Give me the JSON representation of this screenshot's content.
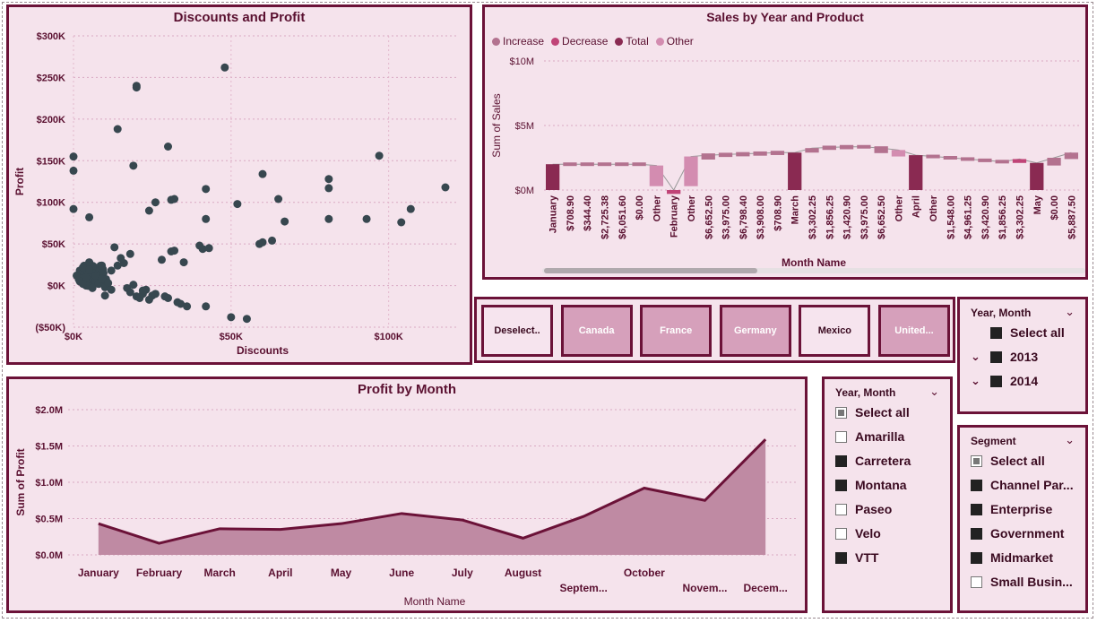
{
  "scatter": {
    "title": "Discounts and Profit",
    "xlabel": "Discounts",
    "ylabel": "Profit",
    "yticks": [
      "$300K",
      "$250K",
      "$200K",
      "$150K",
      "$100K",
      "$50K",
      "$0K",
      "($50K)"
    ],
    "xticks": [
      "$0K",
      "$50K",
      "$100K"
    ],
    "color": "#37474f"
  },
  "waterfall": {
    "title": "Sales by Year and Product",
    "legend": [
      {
        "label": "Increase",
        "color": "#b3728f"
      },
      {
        "label": "Decrease",
        "color": "#c04477"
      },
      {
        "label": "Total",
        "color": "#8a2a52"
      },
      {
        "label": "Other",
        "color": "#d38cb0"
      }
    ],
    "ylabel": "Sum of Sales",
    "yticks": [
      "$10M",
      "$5M",
      "$0M"
    ],
    "xlabel": "Month Name",
    "xcats": [
      "January",
      "$708.90",
      "$344.40",
      "$2,725.38",
      "$6,051.60",
      "$0.00",
      "Other",
      "February",
      "Other",
      "$6,652.50",
      "$3,975.00",
      "$6,798.40",
      "$3,908.00",
      "$708.90",
      "March",
      "$3,302.25",
      "$1,856.25",
      "$1,420.90",
      "$3,975.00",
      "$6,652.50",
      "Other",
      "April",
      "Other",
      "$1,548.00",
      "$4,961.25",
      "$3,420.90",
      "$1,856.25",
      "$3,302.25",
      "May",
      "$0.00",
      "$5,887.50"
    ]
  },
  "countries": [
    {
      "label": "Deselect..",
      "selected": false
    },
    {
      "label": "Canada",
      "selected": true
    },
    {
      "label": "France",
      "selected": true
    },
    {
      "label": "Germany",
      "selected": true
    },
    {
      "label": "Mexico",
      "selected": false
    },
    {
      "label": "United...",
      "selected": true
    }
  ],
  "slicer_year_top": {
    "header": "Year, Month",
    "items": [
      {
        "label": "Select all",
        "state": "filled",
        "expand": false
      },
      {
        "label": "2013",
        "state": "filled",
        "expand": true
      },
      {
        "label": "2014",
        "state": "filled",
        "expand": true
      }
    ]
  },
  "slicer_product": {
    "header": "Year, Month",
    "items": [
      {
        "label": "Select all",
        "state": "partial"
      },
      {
        "label": "Amarilla",
        "state": "empty"
      },
      {
        "label": "Carretera",
        "state": "filled"
      },
      {
        "label": "Montana",
        "state": "filled"
      },
      {
        "label": "Paseo",
        "state": "empty"
      },
      {
        "label": "Velo",
        "state": "empty"
      },
      {
        "label": "VTT",
        "state": "filled"
      }
    ]
  },
  "slicer_segment": {
    "header": "Segment",
    "items": [
      {
        "label": "Select all",
        "state": "partial"
      },
      {
        "label": "Channel Par...",
        "state": "filled"
      },
      {
        "label": "Enterprise",
        "state": "filled"
      },
      {
        "label": "Government",
        "state": "filled"
      },
      {
        "label": "Midmarket",
        "state": "filled"
      },
      {
        "label": "Small Busin...",
        "state": "empty"
      }
    ]
  },
  "chart_data": [
    {
      "type": "scatter",
      "title": "Discounts and Profit",
      "xlabel": "Discounts",
      "ylabel": "Profit",
      "xlim": [
        0,
        120000
      ],
      "ylim": [
        -50000,
        300000
      ],
      "points": [
        [
          0,
          155000
        ],
        [
          0,
          138000
        ],
        [
          0,
          92000
        ],
        [
          5,
          82000
        ],
        [
          14,
          188000
        ],
        [
          48,
          262000
        ],
        [
          20,
          238000
        ],
        [
          20,
          240000
        ],
        [
          19,
          144000
        ],
        [
          30,
          167000
        ],
        [
          24,
          90000
        ],
        [
          26,
          100000
        ],
        [
          31,
          103000
        ],
        [
          32,
          104000
        ],
        [
          42,
          116000
        ],
        [
          42,
          80000
        ],
        [
          52,
          98000
        ],
        [
          59,
          50000
        ],
        [
          60,
          52000
        ],
        [
          60,
          134000
        ],
        [
          63,
          54000
        ],
        [
          65,
          104000
        ],
        [
          67,
          77000
        ],
        [
          81,
          128000
        ],
        [
          81,
          117000
        ],
        [
          81,
          80000
        ],
        [
          93,
          80000
        ],
        [
          97,
          156000
        ],
        [
          104,
          76000
        ],
        [
          107,
          92000
        ],
        [
          118,
          118000
        ],
        [
          2,
          18000
        ],
        [
          3,
          22000
        ],
        [
          4,
          10000
        ],
        [
          5,
          28000
        ],
        [
          6,
          15000
        ],
        [
          7,
          5000
        ],
        [
          8,
          2000
        ],
        [
          9,
          24000
        ],
        [
          10,
          -2000
        ],
        [
          2,
          5000
        ],
        [
          4,
          0
        ],
        [
          6,
          -3000
        ],
        [
          1,
          12000
        ],
        [
          3,
          2000
        ],
        [
          5,
          19000
        ],
        [
          7,
          12000
        ],
        [
          9,
          8000
        ],
        [
          11,
          3000
        ],
        [
          12,
          -5000
        ],
        [
          13,
          46000
        ],
        [
          14,
          24000
        ],
        [
          16,
          27000
        ],
        [
          17,
          -3000
        ],
        [
          18,
          38000
        ],
        [
          19,
          1000
        ],
        [
          20,
          -13000
        ],
        [
          21,
          -15000
        ],
        [
          22,
          -10000
        ],
        [
          23,
          -5000
        ],
        [
          24,
          -17000
        ],
        [
          25,
          -12000
        ],
        [
          26,
          -10000
        ],
        [
          28,
          31000
        ],
        [
          29,
          -13000
        ],
        [
          30,
          -15000
        ],
        [
          31,
          41000
        ],
        [
          32,
          42000
        ],
        [
          33,
          -20000
        ],
        [
          34,
          -22000
        ],
        [
          35,
          28000
        ],
        [
          36,
          -25000
        ],
        [
          40,
          48000
        ],
        [
          41,
          44000
        ],
        [
          42,
          -25000
        ],
        [
          43,
          45000
        ],
        [
          50,
          -38000
        ],
        [
          55,
          -40000
        ],
        [
          10,
          -12000
        ],
        [
          12,
          18000
        ],
        [
          15,
          33000
        ],
        [
          18,
          -8000
        ],
        [
          22,
          -6000
        ]
      ]
    },
    {
      "type": "bar",
      "subtype": "waterfall",
      "title": "Sales by Year and Product",
      "xlabel": "Month Name",
      "ylabel": "Sum of Sales",
      "ylim": [
        0,
        10000000
      ],
      "categories": [
        "January",
        "$708.90",
        "$344.40",
        "$2,725.38",
        "$6,051.60",
        "$0.00",
        "Other",
        "February",
        "Other",
        "$6,652.50",
        "$3,975.00",
        "$6,798.40",
        "$3,908.00",
        "$708.90",
        "March",
        "$3,302.25",
        "$1,856.25",
        "$1,420.90",
        "$3,975.00",
        "$6,652.50",
        "Other",
        "April",
        "Other",
        "$1,548.00",
        "$4,961.25",
        "$3,420.90",
        "$1,856.25",
        "$3,302.25",
        "May",
        "$0.00",
        "$5,887.50"
      ],
      "bars": [
        {
          "kind": "total",
          "lo": 0,
          "hi": 2000000
        },
        {
          "kind": "increase",
          "lo": 2000000,
          "hi": 2000000
        },
        {
          "kind": "increase",
          "lo": 2000000,
          "hi": 2000000
        },
        {
          "kind": "increase",
          "lo": 2000000,
          "hi": 2000000
        },
        {
          "kind": "increase",
          "lo": 2000000,
          "hi": 2000000
        },
        {
          "kind": "increase",
          "lo": 2000000,
          "hi": 2000000
        },
        {
          "kind": "other",
          "lo": 300000,
          "hi": 1900000
        },
        {
          "kind": "decrease",
          "lo": -300000,
          "hi": 0
        },
        {
          "kind": "other",
          "lo": 300000,
          "hi": 2600000
        },
        {
          "kind": "increase",
          "lo": 2500000,
          "hi": 2700000
        },
        {
          "kind": "increase",
          "lo": 2700000,
          "hi": 2750000
        },
        {
          "kind": "increase",
          "lo": 2750000,
          "hi": 2800000
        },
        {
          "kind": "increase",
          "lo": 2800000,
          "hi": 2850000
        },
        {
          "kind": "increase",
          "lo": 2850000,
          "hi": 2900000
        },
        {
          "kind": "total",
          "lo": 0,
          "hi": 2900000
        },
        {
          "kind": "increase",
          "lo": 2900000,
          "hi": 3250000
        },
        {
          "kind": "increase",
          "lo": 3250000,
          "hi": 3300000
        },
        {
          "kind": "increase",
          "lo": 3300000,
          "hi": 3350000
        },
        {
          "kind": "increase",
          "lo": 3350000,
          "hi": 3350000
        },
        {
          "kind": "increase",
          "lo": 3000000,
          "hi": 3250000
        },
        {
          "kind": "other",
          "lo": 2600000,
          "hi": 3100000
        },
        {
          "kind": "total",
          "lo": 0,
          "hi": 2700000
        },
        {
          "kind": "increase",
          "lo": 2600000,
          "hi": 2600000
        },
        {
          "kind": "increase",
          "lo": 2500000,
          "hi": 2500000
        },
        {
          "kind": "increase",
          "lo": 2400000,
          "hi": 2400000
        },
        {
          "kind": "increase",
          "lo": 2300000,
          "hi": 2300000
        },
        {
          "kind": "increase",
          "lo": 2200000,
          "hi": 2200000
        },
        {
          "kind": "decrease",
          "lo": 2100000,
          "hi": 2400000
        },
        {
          "kind": "total",
          "lo": 0,
          "hi": 2100000
        },
        {
          "kind": "increase",
          "lo": 1900000,
          "hi": 2500000
        },
        {
          "kind": "increase",
          "lo": 2400000,
          "hi": 2900000
        }
      ]
    },
    {
      "type": "area",
      "title": "Profit by Month",
      "xlabel": "Month Name",
      "ylabel": "Sum of Profit",
      "ylim": [
        0,
        2000000
      ],
      "yticks": [
        "$2.0M",
        "$1.5M",
        "$1.0M",
        "$0.5M",
        "$0.0M"
      ],
      "categories": [
        "January",
        "February",
        "March",
        "April",
        "May",
        "June",
        "July",
        "August",
        "Septem...",
        "October",
        "Novem...",
        "Decem..."
      ],
      "values": [
        430000,
        160000,
        360000,
        350000,
        430000,
        570000,
        480000,
        230000,
        530000,
        920000,
        750000,
        1590000
      ]
    }
  ]
}
